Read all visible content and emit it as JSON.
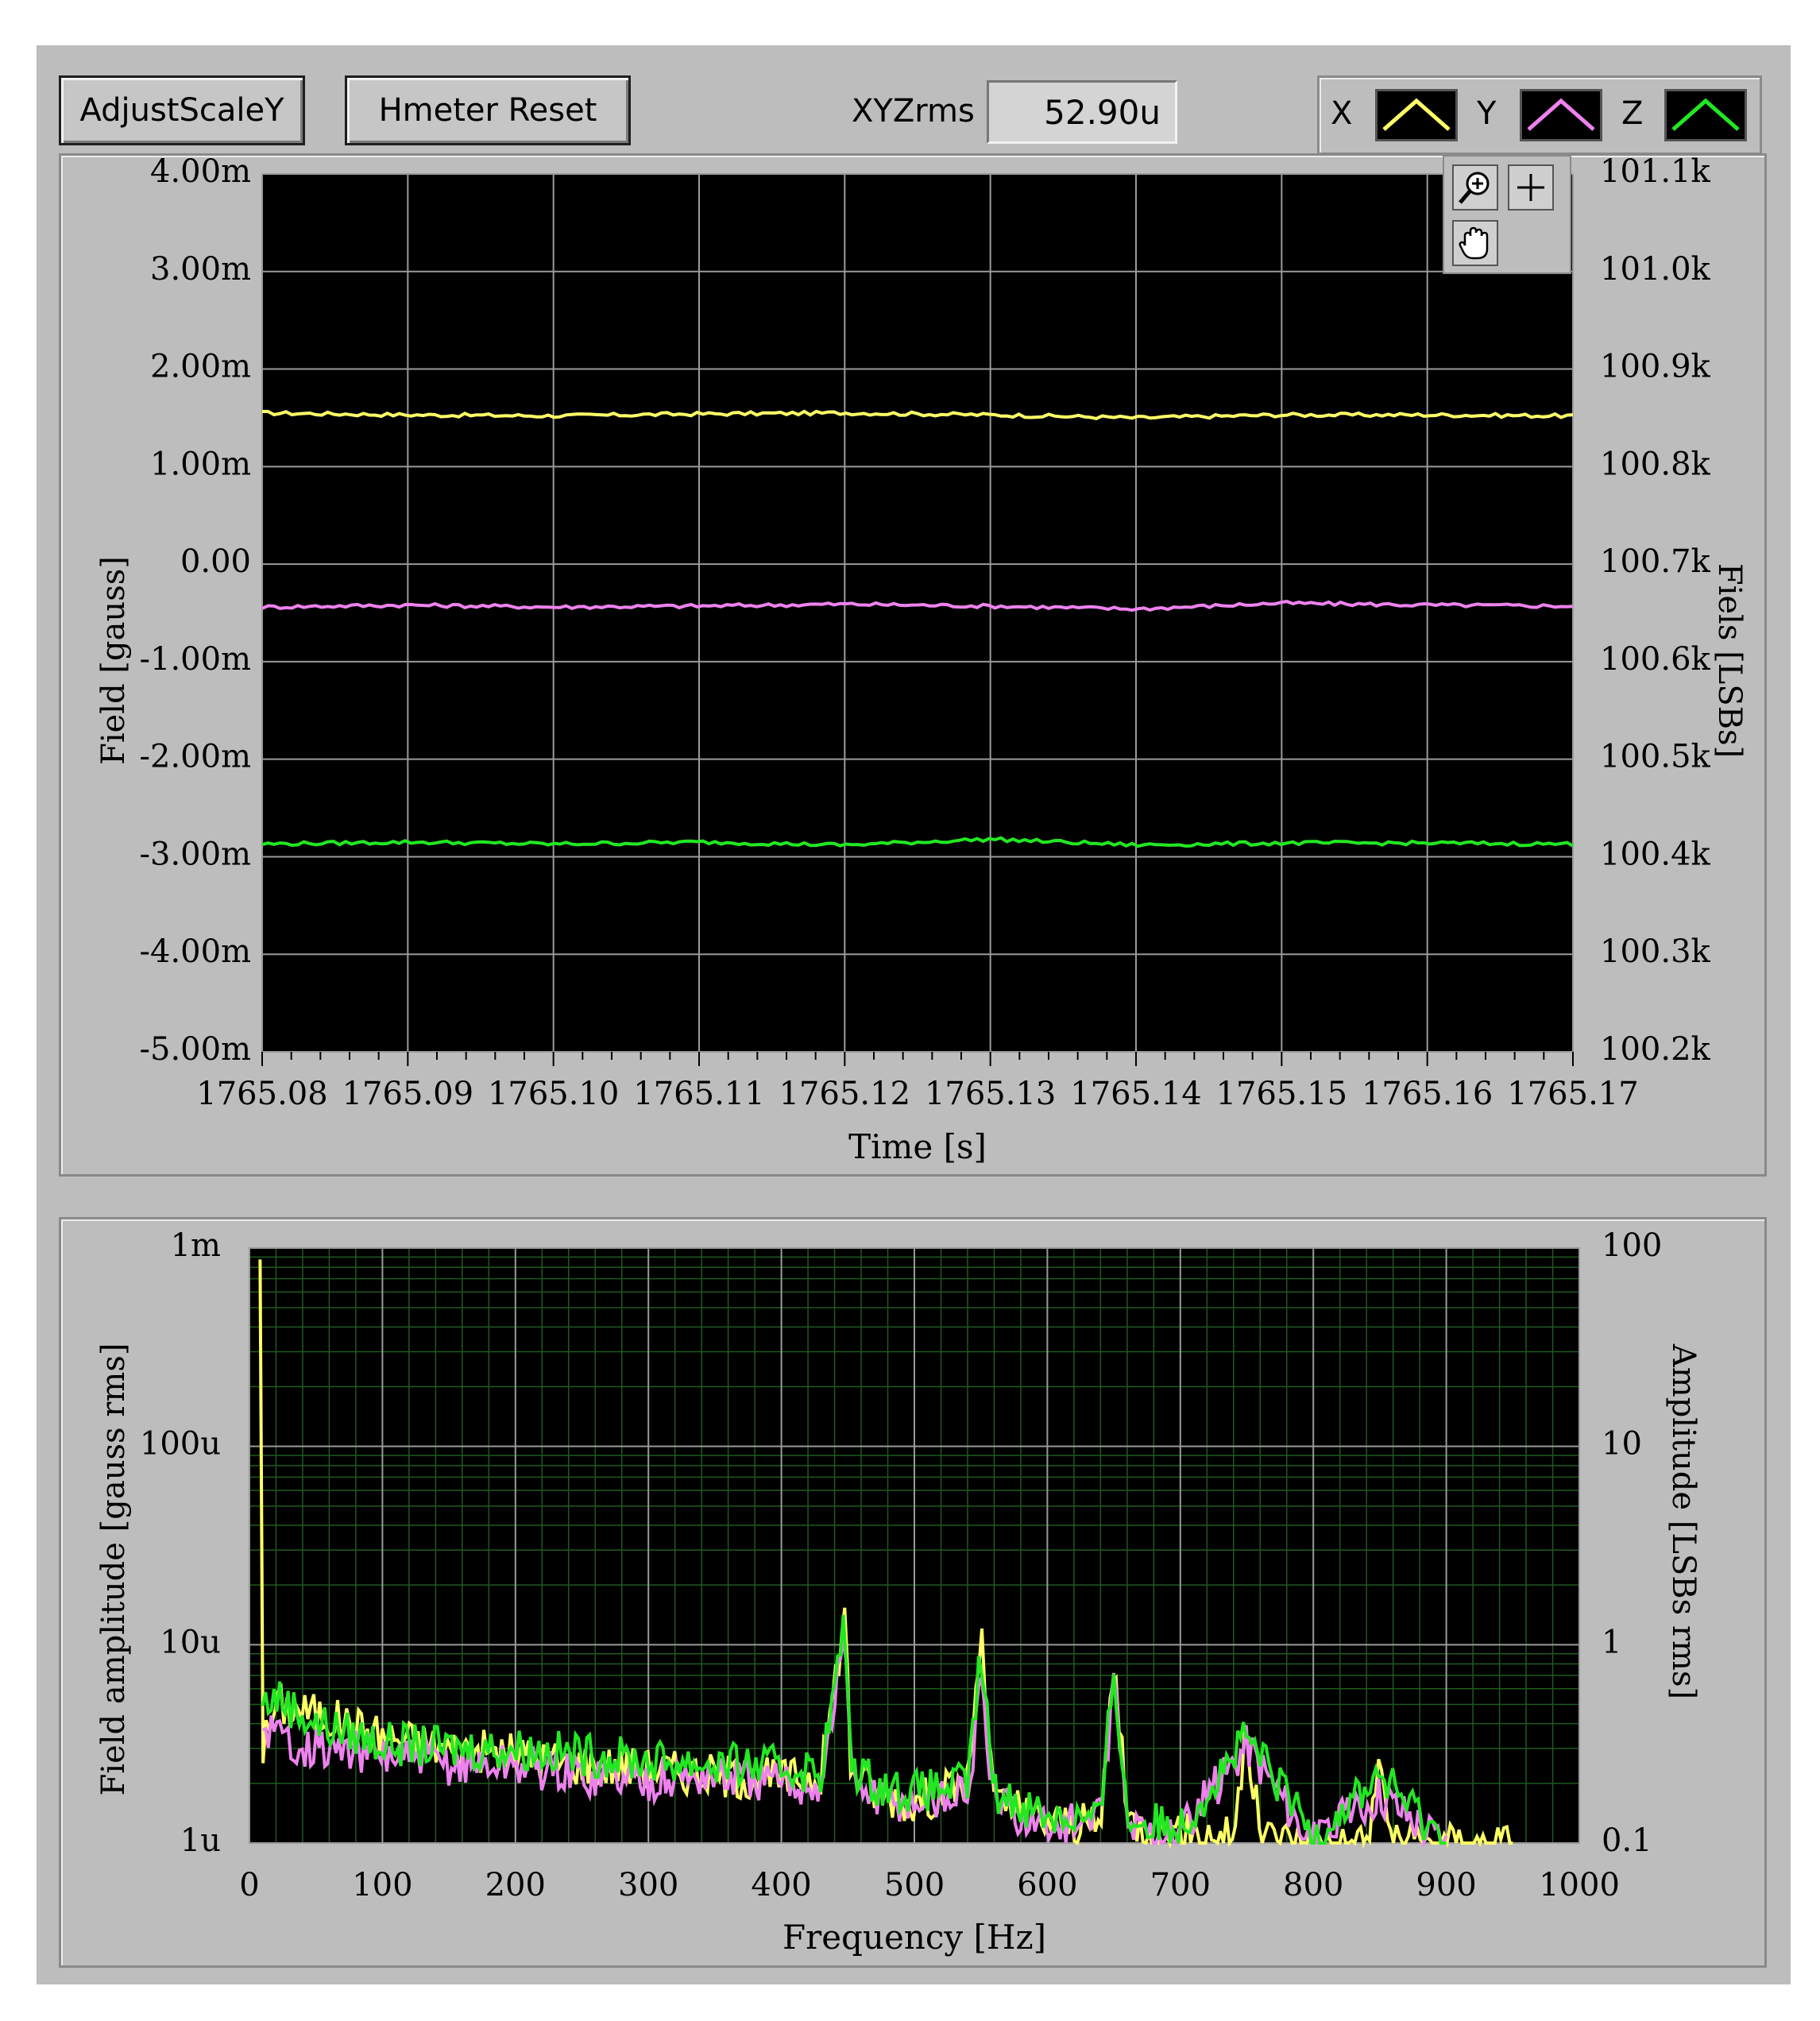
{
  "toolbar": {
    "adjust_label": "AdjustScaleY",
    "reset_label": "Hmeter Reset",
    "xyzrms_label": "XYZrms",
    "xyzrms_value": "52.90u"
  },
  "legend": [
    {
      "name": "X",
      "color": "#ffff66"
    },
    {
      "name": "Y",
      "color": "#ee82ee"
    },
    {
      "name": "Z",
      "color": "#22e822"
    }
  ],
  "graph_tools": [
    "zoom-icon",
    "crosshair-icon",
    "pan-hand-icon"
  ],
  "chart_data": [
    {
      "type": "line",
      "xlabel": "Time [s]",
      "ylabel": "Field [gauss]",
      "y2label": "Fiels [LSBs]",
      "xlim": [
        1765.08,
        1765.17
      ],
      "ylim": [
        -0.005,
        0.004
      ],
      "y2lim": [
        100200,
        101100
      ],
      "x_ticks": [
        "1765.08",
        "1765.09",
        "1765.10",
        "1765.11",
        "1765.12",
        "1765.13",
        "1765.14",
        "1765.15",
        "1765.16",
        "1765.17"
      ],
      "y_ticks": [
        "4.00m",
        "3.00m",
        "2.00m",
        "1.00m",
        "0.00",
        "-1.00m",
        "-2.00m",
        "-3.00m",
        "-4.00m",
        "-5.00m"
      ],
      "y2_ticks": [
        "101.1k",
        "101.0k",
        "100.9k",
        "100.8k",
        "100.7k",
        "100.6k",
        "100.5k",
        "100.4k",
        "100.3k",
        "100.2k"
      ],
      "grid": true,
      "series": [
        {
          "name": "X",
          "color": "#ffff66",
          "x": [
            1765.08,
            1765.09,
            1765.1,
            1765.11,
            1765.12,
            1765.13,
            1765.14,
            1765.15,
            1765.16,
            1765.17
          ],
          "values": [
            0.00155,
            0.00153,
            0.00152,
            0.00154,
            0.00155,
            0.00153,
            0.0015,
            0.00153,
            0.00153,
            0.00152
          ]
        },
        {
          "name": "Y",
          "color": "#ee82ee",
          "x": [
            1765.08,
            1765.09,
            1765.1,
            1765.11,
            1765.12,
            1765.13,
            1765.14,
            1765.15,
            1765.16,
            1765.17
          ],
          "values": [
            -0.00044,
            -0.00042,
            -0.00044,
            -0.00043,
            -0.00041,
            -0.00043,
            -0.00046,
            -0.0004,
            -0.00042,
            -0.00043
          ]
        },
        {
          "name": "Z",
          "color": "#22e822",
          "x": [
            1765.08,
            1765.09,
            1765.1,
            1765.11,
            1765.12,
            1765.13,
            1765.14,
            1765.15,
            1765.16,
            1765.17
          ],
          "values": [
            -0.00287,
            -0.00285,
            -0.00287,
            -0.00285,
            -0.00288,
            -0.00282,
            -0.00288,
            -0.00286,
            -0.00286,
            -0.00287
          ]
        }
      ]
    },
    {
      "type": "line",
      "xlabel": "Frequency [Hz]",
      "ylabel": "Field amplitude  [gauss rms]",
      "y2label": "Amplitude [LSBs rms]",
      "xlim": [
        0,
        1000
      ],
      "ylim": [
        1e-06,
        0.001
      ],
      "y2lim": [
        0.1,
        100
      ],
      "yscale": "log",
      "x_ticks": [
        "0",
        "100",
        "200",
        "300",
        "400",
        "500",
        "600",
        "700",
        "800",
        "900",
        "1000"
      ],
      "y_ticks": [
        "1m",
        "100u",
        "10u",
        "1u"
      ],
      "y2_ticks": [
        "100",
        "10",
        "1",
        "0.1"
      ],
      "grid": true,
      "series": [
        {
          "name": "X",
          "color": "#ffff66",
          "x": [
            8,
            10,
            20,
            50,
            100,
            150,
            200,
            250,
            300,
            350,
            400,
            430,
            448,
            452,
            470,
            500,
            540,
            550,
            560,
            600,
            640,
            650,
            660,
            700,
            740,
            750,
            760,
            800,
            840,
            850,
            860,
            900,
            950
          ],
          "values": [
            0.001,
            3e-06,
            5e-06,
            4.5e-06,
            3.5e-06,
            3e-06,
            2.8e-06,
            2.5e-06,
            2.4e-06,
            2.2e-06,
            2.1e-06,
            2.2e-06,
            1.5e-05,
            2.5e-06,
            1.8e-06,
            1.6e-06,
            2e-06,
            1.1e-05,
            1.6e-06,
            1.3e-06,
            1.2e-06,
            8.5e-06,
            1.3e-06,
            1.1e-06,
            1.1e-06,
            3.5e-06,
            1.1e-06,
            1e-06,
            1e-06,
            2.5e-06,
            1e-06,
            1e-06,
            1e-06
          ]
        },
        {
          "name": "Y",
          "color": "#ee82ee",
          "x": [
            10,
            20,
            50,
            100,
            150,
            200,
            250,
            300,
            350,
            400,
            430,
            448,
            452,
            470,
            500,
            540,
            550,
            560,
            600,
            640,
            650,
            660,
            700,
            750,
            800,
            850,
            900
          ],
          "values": [
            4e-06,
            3.5e-06,
            3e-06,
            2.8e-06,
            2.5e-06,
            2.5e-06,
            2.2e-06,
            2.1e-06,
            2.2e-06,
            2e-06,
            2e-06,
            1.2e-05,
            2.2e-06,
            1.7e-06,
            1.6e-06,
            1.8e-06,
            6e-06,
            1.6e-06,
            1.2e-06,
            1.3e-06,
            7e-06,
            1.2e-06,
            1.1e-06,
            3.2e-06,
            1e-06,
            1.8e-06,
            1e-06
          ]
        },
        {
          "name": "Z",
          "color": "#22e822",
          "x": [
            10,
            20,
            50,
            100,
            150,
            200,
            250,
            300,
            350,
            400,
            430,
            448,
            452,
            470,
            500,
            540,
            550,
            560,
            600,
            640,
            650,
            660,
            700,
            750,
            800,
            850,
            900
          ],
          "values": [
            5e-06,
            5.5e-06,
            4e-06,
            3.2e-06,
            3e-06,
            3e-06,
            2.8e-06,
            2.6e-06,
            2.5e-06,
            2.4e-06,
            2.3e-06,
            1.3e-05,
            2.5e-06,
            2e-06,
            1.8e-06,
            2e-06,
            9e-06,
            1.8e-06,
            1.4e-06,
            1.3e-06,
            8e-06,
            1.3e-06,
            1.2e-06,
            3.4e-06,
            1.1e-06,
            2.2e-06,
            1e-06
          ]
        }
      ]
    }
  ]
}
